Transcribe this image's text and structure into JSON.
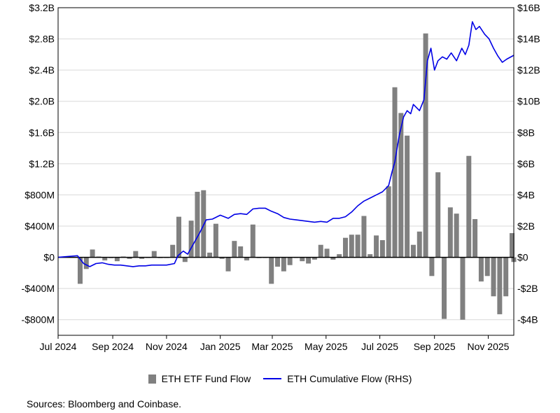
{
  "chart_data": {
    "type": "bar+line",
    "title": "",
    "xlabel": "",
    "left_axis": {
      "ylim": [
        -1000,
        3200
      ],
      "ticks": [
        3200,
        2800,
        2400,
        2000,
        1600,
        1200,
        800,
        400,
        0,
        -400,
        -800
      ],
      "tick_labels": [
        "$3.2B",
        "$2.8B",
        "$2.4B",
        "$2.0B",
        "$1.6B",
        "$1.2B",
        "$800M",
        "$400M",
        "$0",
        "-$400M",
        "-$800M"
      ]
    },
    "right_axis": {
      "ylim": [
        -5,
        16
      ],
      "ticks": [
        16,
        14,
        12,
        10,
        8,
        6,
        4,
        2,
        0,
        -2,
        -4
      ],
      "tick_labels": [
        "$16B",
        "$14B",
        "$12B",
        "$10B",
        "$8B",
        "$6B",
        "$4B",
        "$2B",
        "$0",
        "-$2B",
        "-$4B"
      ]
    },
    "x_axis": {
      "start": "2024-07-01",
      "end": "2025-11-30",
      "tick_dates": [
        "2024-07-01",
        "2024-09-01",
        "2024-11-01",
        "2025-01-01",
        "2025-03-01",
        "2025-05-01",
        "2025-07-01",
        "2025-09-01",
        "2025-11-01"
      ],
      "tick_labels": [
        "Jul 2024",
        "Sep 2024",
        "Nov 2024",
        "Jan 2025",
        "Mar 2025",
        "May 2025",
        "Jul 2025",
        "Sep 2025",
        "Nov 2025"
      ]
    },
    "grid": true,
    "legend_position": "bottom-center",
    "series": [
      {
        "name": "ETH ETF Fund Flow",
        "kind": "bar",
        "unit": "$M",
        "color": "#808080",
        "points": [
          [
            "2024-07-26",
            -340
          ],
          [
            "2024-08-02",
            -150
          ],
          [
            "2024-08-09",
            100
          ],
          [
            "2024-08-16",
            10
          ],
          [
            "2024-08-23",
            -40
          ],
          [
            "2024-08-30",
            -10
          ],
          [
            "2024-09-06",
            -50
          ],
          [
            "2024-09-13",
            10
          ],
          [
            "2024-09-20",
            -20
          ],
          [
            "2024-09-27",
            80
          ],
          [
            "2024-10-04",
            -20
          ],
          [
            "2024-10-11",
            0
          ],
          [
            "2024-10-18",
            80
          ],
          [
            "2024-10-25",
            -10
          ],
          [
            "2024-11-01",
            0
          ],
          [
            "2024-11-08",
            160
          ],
          [
            "2024-11-15",
            520
          ],
          [
            "2024-11-22",
            -60
          ],
          [
            "2024-11-29",
            470
          ],
          [
            "2024-12-06",
            840
          ],
          [
            "2024-12-13",
            860
          ],
          [
            "2024-12-20",
            60
          ],
          [
            "2024-12-27",
            430
          ],
          [
            "2025-01-03",
            -20
          ],
          [
            "2025-01-10",
            -180
          ],
          [
            "2025-01-17",
            210
          ],
          [
            "2025-01-24",
            140
          ],
          [
            "2025-01-31",
            -40
          ],
          [
            "2025-02-07",
            420
          ],
          [
            "2025-02-14",
            -10
          ],
          [
            "2025-02-21",
            0
          ],
          [
            "2025-02-28",
            -340
          ],
          [
            "2025-03-07",
            -120
          ],
          [
            "2025-03-14",
            -180
          ],
          [
            "2025-03-21",
            -100
          ],
          [
            "2025-03-28",
            0
          ],
          [
            "2025-04-04",
            -50
          ],
          [
            "2025-04-11",
            -80
          ],
          [
            "2025-04-18",
            -30
          ],
          [
            "2025-04-25",
            160
          ],
          [
            "2025-05-02",
            110
          ],
          [
            "2025-05-09",
            -30
          ],
          [
            "2025-05-16",
            40
          ],
          [
            "2025-05-23",
            250
          ],
          [
            "2025-05-30",
            290
          ],
          [
            "2025-06-06",
            290
          ],
          [
            "2025-06-13",
            530
          ],
          [
            "2025-06-20",
            40
          ],
          [
            "2025-06-27",
            280
          ],
          [
            "2025-07-04",
            220
          ],
          [
            "2025-07-11",
            910
          ],
          [
            "2025-07-18",
            2180
          ],
          [
            "2025-07-25",
            1850
          ],
          [
            "2025-08-01",
            1560
          ],
          [
            "2025-08-08",
            160
          ],
          [
            "2025-08-15",
            330
          ],
          [
            "2025-08-22",
            2870
          ],
          [
            "2025-08-29",
            -240
          ],
          [
            "2025-09-05",
            1090
          ],
          [
            "2025-09-12",
            -790
          ],
          [
            "2025-09-19",
            640
          ],
          [
            "2025-09-26",
            560
          ],
          [
            "2025-10-03",
            -800
          ],
          [
            "2025-10-10",
            1300
          ],
          [
            "2025-10-17",
            490
          ],
          [
            "2025-10-24",
            -310
          ],
          [
            "2025-10-31",
            -240
          ],
          [
            "2025-11-07",
            -500
          ],
          [
            "2025-11-14",
            -730
          ],
          [
            "2025-11-21",
            -500
          ],
          [
            "2025-11-28",
            310
          ],
          [
            "2025-11-30",
            -60
          ]
        ]
      },
      {
        "name": "ETH Cumulative Flow (RHS)",
        "kind": "line",
        "unit": "$B",
        "color": "#0000e6",
        "points": [
          [
            "2024-07-01",
            0
          ],
          [
            "2024-07-23",
            0.1
          ],
          [
            "2024-07-30",
            -0.4
          ],
          [
            "2024-08-06",
            -0.6
          ],
          [
            "2024-08-13",
            -0.4
          ],
          [
            "2024-08-20",
            -0.35
          ],
          [
            "2024-08-27",
            -0.45
          ],
          [
            "2024-09-03",
            -0.5
          ],
          [
            "2024-09-10",
            -0.5
          ],
          [
            "2024-09-17",
            -0.55
          ],
          [
            "2024-09-24",
            -0.6
          ],
          [
            "2024-10-01",
            -0.55
          ],
          [
            "2024-10-08",
            -0.55
          ],
          [
            "2024-10-15",
            -0.5
          ],
          [
            "2024-10-22",
            -0.5
          ],
          [
            "2024-11-01",
            -0.5
          ],
          [
            "2024-11-10",
            -0.4
          ],
          [
            "2024-11-14",
            0.1
          ],
          [
            "2024-11-20",
            0.4
          ],
          [
            "2024-11-25",
            0.2
          ],
          [
            "2024-12-02",
            0.9
          ],
          [
            "2024-12-09",
            1.6
          ],
          [
            "2024-12-16",
            2.4
          ],
          [
            "2024-12-23",
            2.45
          ],
          [
            "2025-01-01",
            2.7
          ],
          [
            "2025-01-10",
            2.5
          ],
          [
            "2025-01-17",
            2.75
          ],
          [
            "2025-01-24",
            2.8
          ],
          [
            "2025-01-31",
            2.75
          ],
          [
            "2025-02-07",
            3.1
          ],
          [
            "2025-02-14",
            3.15
          ],
          [
            "2025-02-21",
            3.15
          ],
          [
            "2025-02-28",
            2.95
          ],
          [
            "2025-03-07",
            2.8
          ],
          [
            "2025-03-14",
            2.55
          ],
          [
            "2025-03-21",
            2.45
          ],
          [
            "2025-03-28",
            2.4
          ],
          [
            "2025-04-04",
            2.35
          ],
          [
            "2025-04-11",
            2.3
          ],
          [
            "2025-04-18",
            2.25
          ],
          [
            "2025-04-25",
            2.3
          ],
          [
            "2025-05-02",
            2.25
          ],
          [
            "2025-05-09",
            2.5
          ],
          [
            "2025-05-16",
            2.5
          ],
          [
            "2025-05-23",
            2.6
          ],
          [
            "2025-05-30",
            2.9
          ],
          [
            "2025-06-06",
            3.3
          ],
          [
            "2025-06-13",
            3.6
          ],
          [
            "2025-06-20",
            3.8
          ],
          [
            "2025-06-27",
            4.0
          ],
          [
            "2025-07-04",
            4.2
          ],
          [
            "2025-07-11",
            4.6
          ],
          [
            "2025-07-15",
            5.5
          ],
          [
            "2025-07-18",
            6.1
          ],
          [
            "2025-07-23",
            7.8
          ],
          [
            "2025-07-28",
            9.0
          ],
          [
            "2025-08-01",
            9.4
          ],
          [
            "2025-08-05",
            9.2
          ],
          [
            "2025-08-08",
            9.8
          ],
          [
            "2025-08-15",
            9.4
          ],
          [
            "2025-08-20",
            10.1
          ],
          [
            "2025-08-24",
            12.6
          ],
          [
            "2025-08-28",
            13.4
          ],
          [
            "2025-09-01",
            12.0
          ],
          [
            "2025-09-05",
            12.6
          ],
          [
            "2025-09-10",
            12.85
          ],
          [
            "2025-09-15",
            12.7
          ],
          [
            "2025-09-20",
            13.1
          ],
          [
            "2025-09-26",
            12.6
          ],
          [
            "2025-10-02",
            13.4
          ],
          [
            "2025-10-06",
            13.0
          ],
          [
            "2025-10-10",
            13.6
          ],
          [
            "2025-10-14",
            15.1
          ],
          [
            "2025-10-18",
            14.6
          ],
          [
            "2025-10-22",
            14.8
          ],
          [
            "2025-10-28",
            14.3
          ],
          [
            "2025-11-02",
            14.0
          ],
          [
            "2025-11-07",
            13.4
          ],
          [
            "2025-11-12",
            12.9
          ],
          [
            "2025-11-17",
            12.5
          ],
          [
            "2025-11-22",
            12.7
          ],
          [
            "2025-11-30",
            12.95
          ]
        ]
      }
    ]
  },
  "legend": {
    "bar_label": "ETH ETF Fund Flow",
    "line_label": "ETH Cumulative Flow (RHS)"
  },
  "source": "Sources: Bloomberg and Coinbase."
}
